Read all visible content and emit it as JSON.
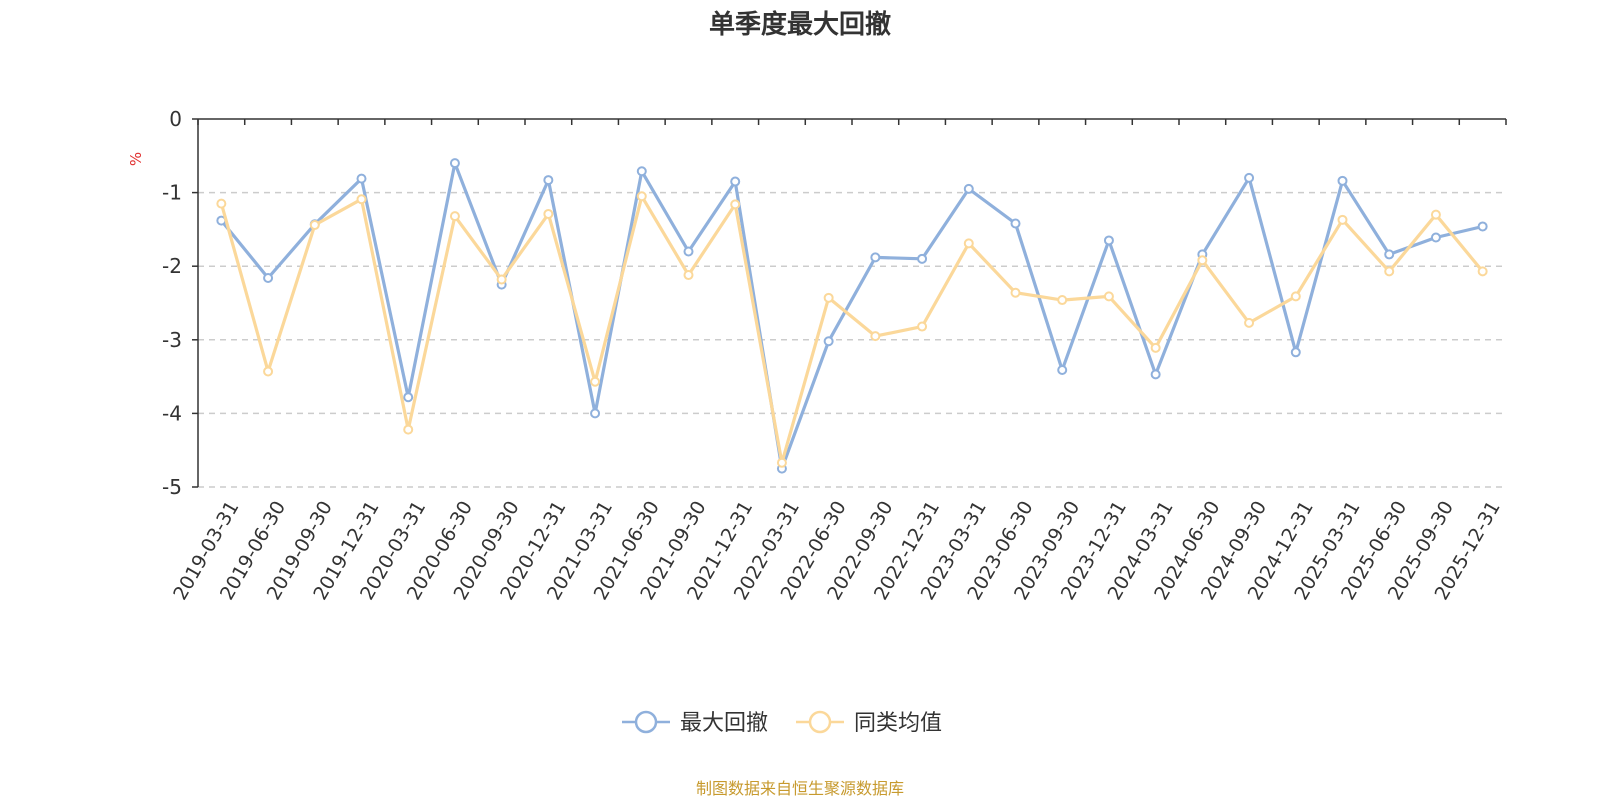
{
  "chart_data": {
    "type": "line",
    "title": "单季度最大回撤",
    "ylabel": "%",
    "ylim": [
      -5,
      0
    ],
    "yticks": [
      "0",
      "-1",
      "-2",
      "-3",
      "-4",
      "-5"
    ],
    "grid": true,
    "legend_position": "bottom",
    "categories": [
      "2019-03-31",
      "2019-06-30",
      "2019-09-30",
      "2019-12-31",
      "2020-03-31",
      "2020-06-30",
      "2020-09-30",
      "2020-12-31",
      "2021-03-31",
      "2021-06-30",
      "2021-09-30",
      "2021-12-31",
      "2022-03-31",
      "2022-06-30",
      "2022-09-30",
      "2022-12-31",
      "2023-03-31",
      "2023-06-30",
      "2023-09-30",
      "2023-12-31",
      "2024-03-31",
      "2024-06-30",
      "2024-09-30",
      "2024-12-31",
      "2025-03-31",
      "2025-06-30",
      "2025-09-30",
      "2025-12-31"
    ],
    "series": [
      {
        "name": "最大回撤",
        "color": "#8fb0dc",
        "values": [
          -1.38,
          -2.16,
          -1.43,
          -0.81,
          -3.78,
          -0.6,
          -2.25,
          -0.83,
          -4.0,
          -0.71,
          -1.8,
          -0.85,
          -4.75,
          -3.02,
          -1.88,
          -1.9,
          -0.95,
          -1.42,
          -3.41,
          -1.65,
          -3.47,
          -1.84,
          -0.8,
          -3.17,
          -0.84,
          -1.84,
          -1.61,
          -1.46
        ]
      },
      {
        "name": "同类均值",
        "color": "#fbd89a",
        "values": [
          -1.15,
          -3.43,
          -1.44,
          -1.09,
          -4.22,
          -1.32,
          -2.18,
          -1.29,
          -3.57,
          -1.05,
          -2.12,
          -1.16,
          -4.67,
          -2.43,
          -2.95,
          -2.82,
          -1.69,
          -2.36,
          -2.46,
          -2.41,
          -3.11,
          -1.92,
          -2.77,
          -2.41,
          -1.37,
          -2.07,
          -1.3,
          -2.07
        ]
      }
    ],
    "source_note": "制图数据来自恒生聚源数据库",
    "colors": {
      "axis": "#333333",
      "grid": "#cccccc",
      "unit": "#e03030",
      "source": "#c79a2e"
    }
  }
}
